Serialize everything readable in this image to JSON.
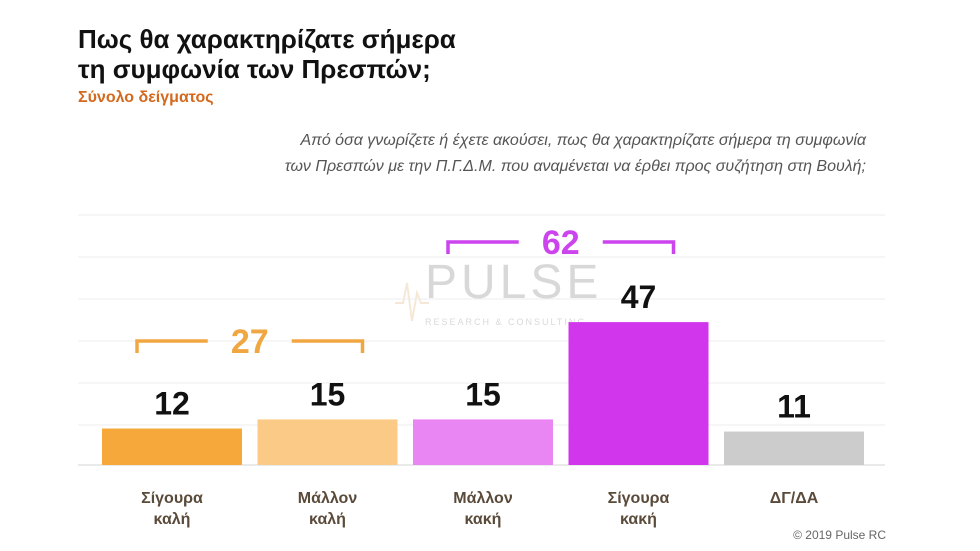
{
  "title_line1": "Πως θα χαρακτηρίζατε σήμερα",
  "title_line2": "τη συμφωνία των Πρεσπών;",
  "subtitle": "Σύνολο δείγματος",
  "question_line1": "Από όσα γνωρίζετε ή έχετε ακούσει, πως θα χαρακτηρίζατε σήμερα τη συμφωνία",
  "question_line2": "των Πρεσπών με την Π.Γ.Δ.Μ. που αναμένεται να έρθει προς συζήτηση στη Βουλή;",
  "footer": "© 2019 Pulse RC",
  "watermark": {
    "text": "PULSE",
    "sub": "RESEARCH & CONSULTING"
  },
  "colors": {
    "positive_group": "#f0a742",
    "negative_group": "#cc44ee"
  },
  "chart_data": {
    "type": "bar",
    "categories": [
      {
        "line1": "Σίγουρα",
        "line2": "καλή"
      },
      {
        "line1": "Μάλλον",
        "line2": "καλή"
      },
      {
        "line1": "Μάλλον",
        "line2": "κακή"
      },
      {
        "line1": "Σίγουρα",
        "line2": "κακή"
      },
      {
        "line1": "ΔΓ/ΔΑ",
        "line2": ""
      }
    ],
    "values": [
      12,
      15,
      15,
      47,
      11
    ],
    "value_labels": [
      "12",
      "15",
      "15",
      "47",
      "11"
    ],
    "bar_colors": [
      "#f7a83a",
      "#fbca86",
      "#ea86f4",
      "#d135ec",
      "#cccccc"
    ],
    "ylim": [
      0,
      80
    ],
    "grid": true,
    "groups": [
      {
        "label": "27",
        "from": 0,
        "to": 1,
        "color": "#f0a742"
      },
      {
        "label": "62",
        "from": 2,
        "to": 3,
        "color": "#cc44ee"
      }
    ]
  }
}
